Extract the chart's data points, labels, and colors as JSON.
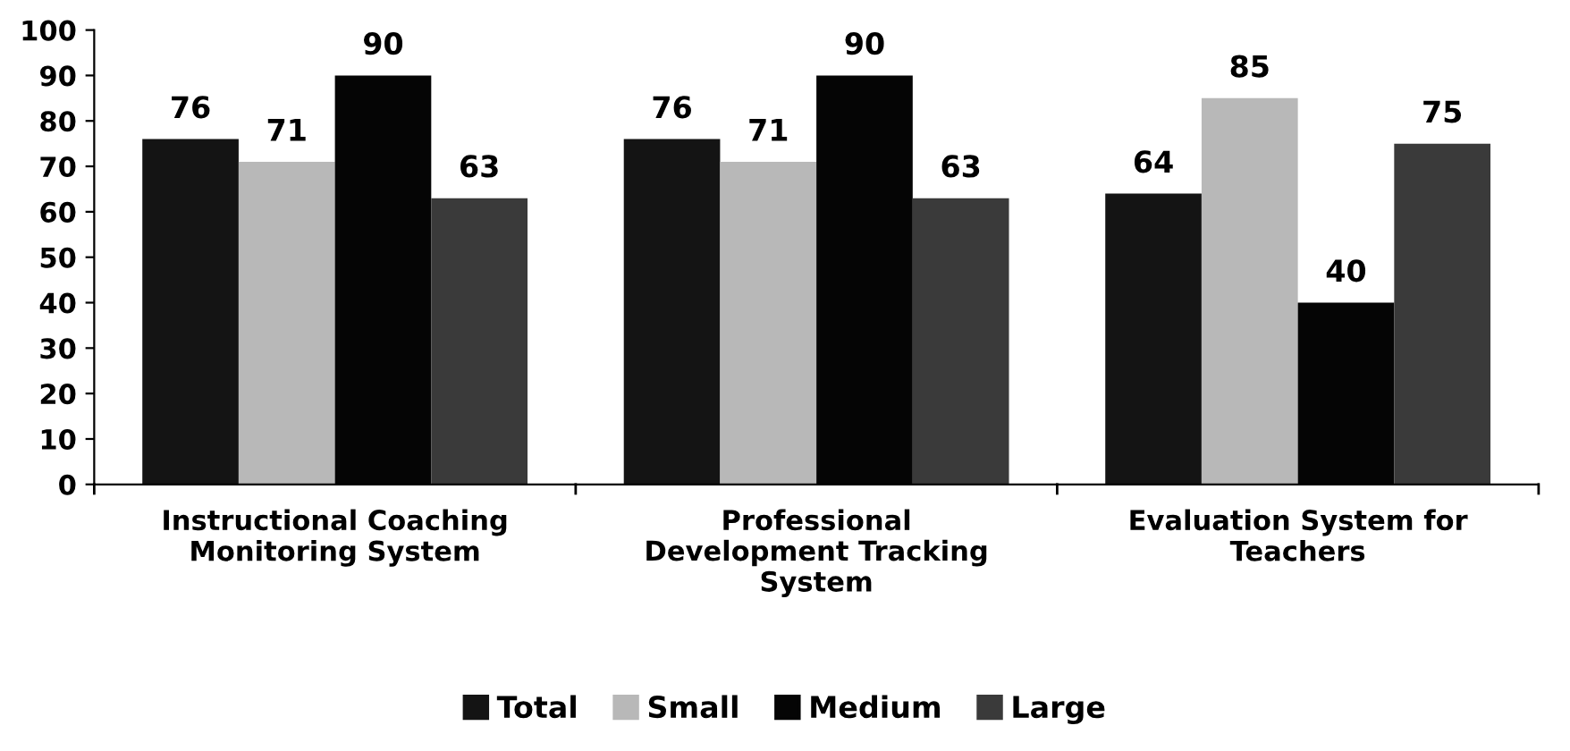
{
  "chart_data": {
    "type": "bar",
    "categories": [
      "Instructional Coaching\nMonitoring System",
      "Professional\nDevelopment Tracking\nSystem",
      "Evaluation System for\nTeachers"
    ],
    "series": [
      {
        "name": "Total",
        "color": "#141414",
        "values": [
          76,
          76,
          64
        ]
      },
      {
        "name": "Small",
        "color": "#b8b8b8",
        "values": [
          71,
          71,
          85
        ]
      },
      {
        "name": "Medium",
        "color": "#050505",
        "values": [
          90,
          90,
          40
        ]
      },
      {
        "name": "Large",
        "color": "#3a3a3a",
        "values": [
          63,
          63,
          75
        ]
      }
    ],
    "ylim": [
      0,
      100
    ],
    "yticks": [
      0,
      10,
      20,
      30,
      40,
      50,
      60,
      70,
      80,
      90,
      100
    ],
    "data_labels": true,
    "grid": false,
    "legend": "bottom"
  }
}
